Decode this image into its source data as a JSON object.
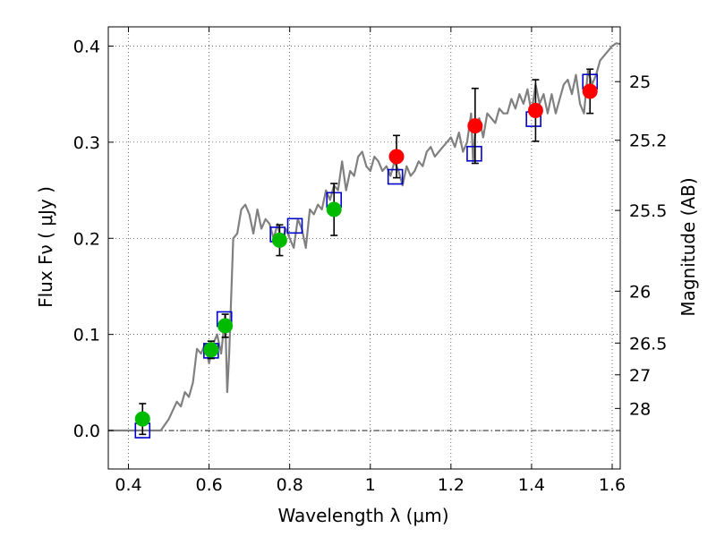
{
  "chart_data": {
    "type": "scatter",
    "xlabel": "Wavelength  λ (μm)",
    "ylabel": "Flux  Fν  ( μJy )",
    "ylabel_right": "Magnitude (AB)",
    "xlim": [
      0.35,
      1.62
    ],
    "ylim": [
      -0.04,
      0.42
    ],
    "grid": true,
    "x_ticks": [
      0.4,
      0.6,
      0.8,
      1.0,
      1.2,
      1.4,
      1.6
    ],
    "x_tick_labels": [
      "0.4",
      "0.6",
      "0.8",
      "1",
      "1.2",
      "1.4",
      "1.6"
    ],
    "y_ticks": [
      0.0,
      0.1,
      0.2,
      0.3,
      0.4
    ],
    "y_tick_labels": [
      "0.0",
      "0.1",
      "0.2",
      "0.3",
      "0.4"
    ],
    "right_ticks": [
      {
        "label": "25",
        "flux": 0.363
      },
      {
        "label": "25.2",
        "flux": 0.302
      },
      {
        "label": "25.5",
        "flux": 0.229
      },
      {
        "label": "26",
        "flux": 0.145
      },
      {
        "label": "26.5",
        "flux": 0.091
      },
      {
        "label": "27",
        "flux": 0.058
      },
      {
        "label": "28",
        "flux": 0.023
      }
    ],
    "series": [
      {
        "marker": "line",
        "color": "#808080",
        "x": [
          0.35,
          0.48,
          0.5,
          0.52,
          0.53,
          0.54,
          0.55,
          0.56,
          0.57,
          0.58,
          0.59,
          0.6,
          0.61,
          0.62,
          0.63,
          0.64,
          0.645,
          0.65,
          0.66,
          0.67,
          0.68,
          0.69,
          0.7,
          0.71,
          0.72,
          0.73,
          0.74,
          0.75,
          0.76,
          0.77,
          0.78,
          0.79,
          0.8,
          0.81,
          0.82,
          0.83,
          0.84,
          0.85,
          0.86,
          0.87,
          0.88,
          0.89,
          0.9,
          0.91,
          0.92,
          0.93,
          0.94,
          0.95,
          0.96,
          0.97,
          0.98,
          0.99,
          1.0,
          1.01,
          1.02,
          1.03,
          1.04,
          1.05,
          1.06,
          1.07,
          1.08,
          1.09,
          1.1,
          1.11,
          1.12,
          1.13,
          1.14,
          1.15,
          1.16,
          1.17,
          1.18,
          1.19,
          1.2,
          1.21,
          1.22,
          1.23,
          1.24,
          1.25,
          1.255,
          1.26,
          1.27,
          1.28,
          1.29,
          1.3,
          1.31,
          1.32,
          1.33,
          1.34,
          1.35,
          1.36,
          1.37,
          1.38,
          1.39,
          1.4,
          1.41,
          1.42,
          1.43,
          1.44,
          1.45,
          1.46,
          1.47,
          1.48,
          1.49,
          1.5,
          1.51,
          1.52,
          1.53,
          1.54,
          1.55,
          1.56,
          1.57,
          1.58,
          1.59,
          1.6,
          1.61,
          1.62
        ],
        "y": [
          0.0,
          0.0,
          0.012,
          0.03,
          0.025,
          0.04,
          0.035,
          0.05,
          0.085,
          0.08,
          0.09,
          0.07,
          0.09,
          0.1,
          0.08,
          0.12,
          0.04,
          0.08,
          0.2,
          0.205,
          0.23,
          0.235,
          0.225,
          0.205,
          0.23,
          0.21,
          0.22,
          0.215,
          0.2,
          0.215,
          0.195,
          0.21,
          0.2,
          0.19,
          0.22,
          0.21,
          0.19,
          0.23,
          0.225,
          0.235,
          0.23,
          0.25,
          0.24,
          0.255,
          0.25,
          0.28,
          0.25,
          0.27,
          0.265,
          0.285,
          0.29,
          0.275,
          0.27,
          0.285,
          0.28,
          0.27,
          0.275,
          0.265,
          0.28,
          0.27,
          0.255,
          0.275,
          0.265,
          0.27,
          0.28,
          0.275,
          0.29,
          0.295,
          0.285,
          0.29,
          0.295,
          0.3,
          0.305,
          0.295,
          0.31,
          0.29,
          0.3,
          0.33,
          0.28,
          0.31,
          0.325,
          0.305,
          0.33,
          0.325,
          0.32,
          0.335,
          0.33,
          0.33,
          0.345,
          0.335,
          0.35,
          0.34,
          0.355,
          0.33,
          0.36,
          0.34,
          0.35,
          0.33,
          0.35,
          0.33,
          0.345,
          0.36,
          0.365,
          0.35,
          0.37,
          0.34,
          0.33,
          0.375,
          0.36,
          0.37,
          0.385,
          0.39,
          0.395,
          0.4,
          0.403,
          0.402
        ]
      },
      {
        "marker": "square",
        "color": "#0000cc",
        "x": [
          0.435,
          0.605,
          0.638,
          0.77,
          0.813,
          0.91,
          1.062,
          1.258,
          1.405,
          1.545
        ],
        "y": [
          0.0,
          0.083,
          0.116,
          0.204,
          0.213,
          0.24,
          0.264,
          0.288,
          0.324,
          0.363
        ]
      },
      {
        "marker": "circle",
        "color": "#00bb00",
        "x": [
          0.435,
          0.605,
          0.64,
          0.775,
          0.91
        ],
        "y": [
          0.012,
          0.084,
          0.109,
          0.198,
          0.23
        ],
        "yerr": [
          0.016,
          0.009,
          0.012,
          0.016,
          0.027
        ]
      },
      {
        "marker": "circle",
        "color": "#ff0000",
        "x": [
          1.065,
          1.26,
          1.41,
          1.545
        ],
        "y": [
          0.285,
          0.317,
          0.333,
          0.353
        ],
        "yerr": [
          0.022,
          0.039,
          0.032,
          0.023
        ]
      }
    ]
  }
}
